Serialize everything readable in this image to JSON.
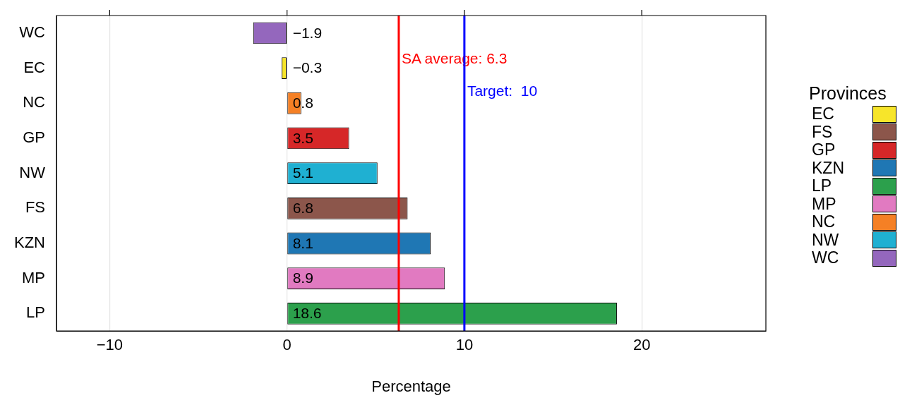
{
  "chart_data": {
    "type": "bar",
    "orientation": "horizontal",
    "xlabel": "Percentage",
    "legend_title": "Provinces",
    "legend": "right",
    "categories": [
      "WC",
      "EC",
      "NC",
      "GP",
      "NW",
      "FS",
      "KZN",
      "MP",
      "LP"
    ],
    "values": [
      -1.9,
      -0.3,
      0.8,
      3.5,
      5.1,
      6.8,
      8.1,
      8.9,
      18.6
    ],
    "colors": [
      "#9467bd",
      "#f7e52a",
      "#f58025",
      "#d62728",
      "#1fb0d2",
      "#8c564b",
      "#1f77b4",
      "#e17ac1",
      "#2ca04c"
    ],
    "data_labels": true,
    "xlim": [
      -13,
      27
    ],
    "xticks": [
      -10,
      0,
      10,
      20
    ],
    "grid": "x",
    "ref_lines": [
      {
        "axis": "x",
        "value": 6.3,
        "label": "SA average: 6.3",
        "color": "#ff0000"
      },
      {
        "axis": "x",
        "value": 10,
        "label": "Target:  10",
        "color": "#0000ff"
      }
    ]
  }
}
